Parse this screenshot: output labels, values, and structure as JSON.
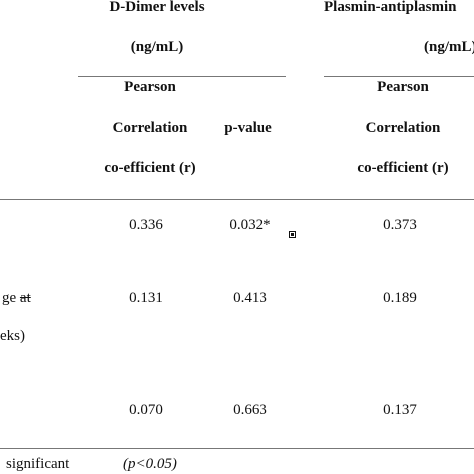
{
  "headers": {
    "ddimer_title": "D-Dimer levels",
    "ddimer_unit": "(ng/mL)",
    "pap_title": "Plasmin-antiplasmin",
    "pap_unit": "(ng/mL)",
    "pearson_line1": "Pearson",
    "pearson_line2": "Correlation",
    "pearson_line3": "co-efficient (r)",
    "pvalue": "p-value"
  },
  "rows": [
    {
      "label_lines": [],
      "ddimer_r": "0.336",
      "ddimer_p": "0.032*",
      "pap_r": "0.373"
    },
    {
      "label_lines": [
        "ge at",
        "eks)"
      ],
      "ddimer_r": "0.131",
      "ddimer_p": "0.413",
      "pap_r": "0.189"
    },
    {
      "label_lines": [],
      "ddimer_r": "0.070",
      "ddimer_p": "0.663",
      "pap_r": "0.137"
    }
  ],
  "footnote": {
    "left": "significant",
    "right": "(p<0.05)"
  }
}
